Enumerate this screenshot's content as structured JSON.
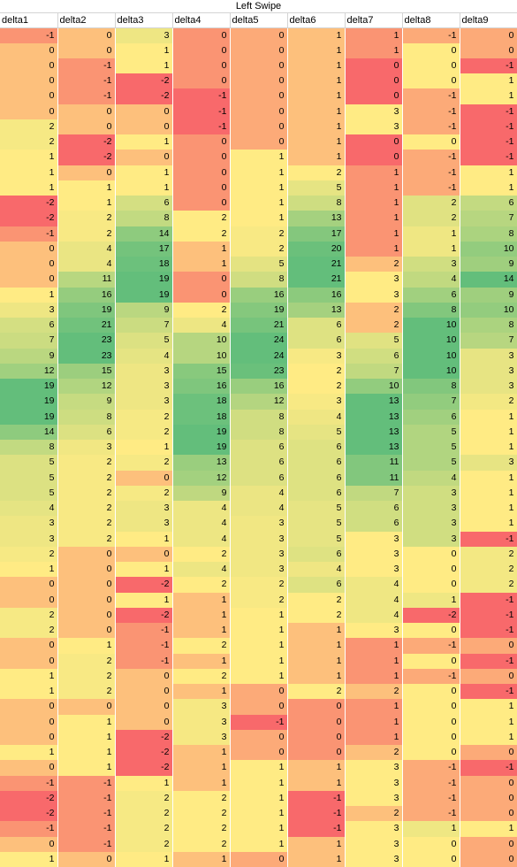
{
  "sheet": {
    "title": "Left Swipe",
    "columns": [
      "delta1",
      "delta2",
      "delta3",
      "delta4",
      "delta5",
      "delta6",
      "delta7",
      "delta8",
      "delta9"
    ],
    "rows": [
      [
        -1,
        0,
        3,
        0,
        0,
        1,
        1,
        -1,
        0
      ],
      [
        0,
        0,
        1,
        0,
        0,
        1,
        1,
        0,
        0
      ],
      [
        0,
        -1,
        1,
        0,
        0,
        1,
        0,
        0,
        -1
      ],
      [
        0,
        -1,
        -2,
        0,
        0,
        1,
        0,
        0,
        1
      ],
      [
        0,
        -1,
        -2,
        -1,
        0,
        1,
        0,
        -1,
        1
      ],
      [
        0,
        0,
        0,
        -1,
        0,
        1,
        3,
        -1,
        -1
      ],
      [
        2,
        0,
        0,
        -1,
        0,
        1,
        3,
        -1,
        -1
      ],
      [
        2,
        -2,
        1,
        0,
        0,
        1,
        0,
        0,
        -1
      ],
      [
        1,
        -2,
        0,
        0,
        1,
        1,
        0,
        -1,
        -1
      ],
      [
        1,
        0,
        1,
        0,
        1,
        2,
        1,
        -1,
        1
      ],
      [
        1,
        1,
        1,
        0,
        1,
        5,
        1,
        -1,
        1
      ],
      [
        -2,
        1,
        6,
        0,
        1,
        8,
        1,
        2,
        6
      ],
      [
        -2,
        2,
        8,
        2,
        1,
        13,
        1,
        2,
        7
      ],
      [
        -1,
        2,
        14,
        2,
        2,
        17,
        1,
        1,
        8
      ],
      [
        0,
        4,
        17,
        1,
        2,
        20,
        1,
        1,
        10
      ],
      [
        0,
        4,
        18,
        1,
        5,
        21,
        2,
        3,
        9
      ],
      [
        0,
        11,
        19,
        0,
        8,
        21,
        3,
        4,
        14
      ],
      [
        1,
        16,
        19,
        0,
        16,
        16,
        3,
        6,
        9
      ],
      [
        3,
        19,
        9,
        2,
        19,
        13,
        2,
        8,
        10
      ],
      [
        6,
        21,
        7,
        4,
        21,
        6,
        2,
        10,
        8
      ],
      [
        7,
        23,
        5,
        10,
        24,
        6,
        5,
        10,
        7
      ],
      [
        9,
        23,
        4,
        10,
        24,
        3,
        6,
        10,
        3
      ],
      [
        12,
        15,
        3,
        15,
        23,
        2,
        7,
        10,
        3
      ],
      [
        19,
        12,
        3,
        16,
        16,
        2,
        10,
        8,
        3
      ],
      [
        19,
        9,
        3,
        18,
        12,
        3,
        13,
        7,
        2
      ],
      [
        19,
        8,
        2,
        18,
        8,
        4,
        13,
        6,
        1
      ],
      [
        14,
        6,
        2,
        19,
        8,
        5,
        13,
        5,
        1
      ],
      [
        8,
        3,
        1,
        19,
        6,
        6,
        13,
        5,
        1
      ],
      [
        5,
        2,
        2,
        13,
        6,
        6,
        11,
        5,
        3
      ],
      [
        5,
        2,
        0,
        12,
        6,
        6,
        11,
        4,
        1
      ],
      [
        5,
        2,
        2,
        9,
        4,
        6,
        7,
        3,
        1
      ],
      [
        4,
        2,
        3,
        4,
        4,
        5,
        6,
        3,
        1
      ],
      [
        3,
        2,
        3,
        4,
        3,
        5,
        6,
        3,
        1
      ],
      [
        3,
        2,
        1,
        4,
        3,
        5,
        3,
        3,
        -1
      ],
      [
        2,
        0,
        0,
        2,
        3,
        6,
        3,
        0,
        2
      ],
      [
        1,
        0,
        1,
        4,
        3,
        4,
        3,
        0,
        2
      ],
      [
        0,
        0,
        -2,
        2,
        2,
        6,
        4,
        0,
        2
      ],
      [
        0,
        0,
        1,
        1,
        2,
        2,
        4,
        1,
        -1
      ],
      [
        2,
        0,
        -2,
        1,
        1,
        2,
        4,
        -2,
        -1
      ],
      [
        2,
        0,
        -1,
        1,
        1,
        1,
        3,
        0,
        -1
      ],
      [
        0,
        1,
        -1,
        2,
        1,
        1,
        1,
        -1,
        0
      ],
      [
        0,
        2,
        -1,
        1,
        1,
        1,
        1,
        0,
        -1
      ],
      [
        1,
        2,
        0,
        2,
        1,
        1,
        1,
        -1,
        0
      ],
      [
        1,
        2,
        0,
        1,
        0,
        2,
        2,
        0,
        -1
      ],
      [
        0,
        0,
        0,
        3,
        0,
        0,
        1,
        0,
        1
      ],
      [
        0,
        1,
        0,
        3,
        -1,
        0,
        1,
        0,
        1
      ],
      [
        0,
        1,
        -2,
        3,
        0,
        0,
        1,
        0,
        1
      ],
      [
        1,
        1,
        -2,
        1,
        0,
        0,
        2,
        0,
        0
      ],
      [
        0,
        1,
        -2,
        1,
        1,
        1,
        3,
        -1,
        -1
      ],
      [
        -1,
        -1,
        1,
        1,
        1,
        1,
        3,
        -1,
        0
      ],
      [
        -2,
        -1,
        2,
        2,
        1,
        -1,
        3,
        -1,
        0
      ],
      [
        -2,
        -1,
        2,
        2,
        1,
        -1,
        2,
        -1,
        0
      ],
      [
        -1,
        -1,
        2,
        2,
        1,
        -1,
        3,
        1,
        1
      ],
      [
        0,
        -1,
        2,
        2,
        1,
        1,
        3,
        0,
        0
      ],
      [
        1,
        0,
        1,
        1,
        0,
        1,
        3,
        0,
        0
      ]
    ]
  }
}
